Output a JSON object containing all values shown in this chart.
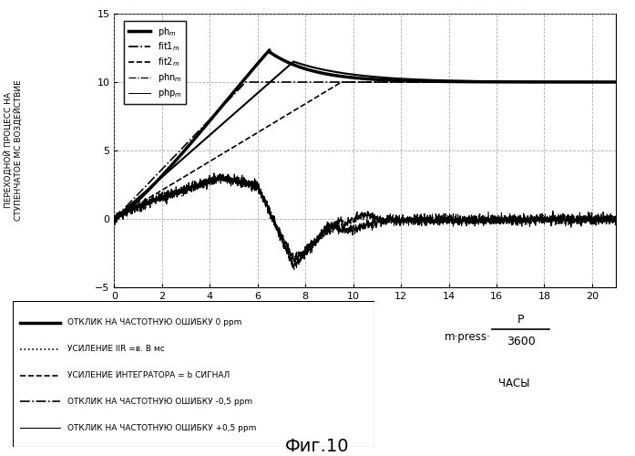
{
  "title_fig": "Фиг.10",
  "ylabel": "ПЕРЕХОДНОЙ ПРОЦЕСС НА\nСТУПЕНЧАТОЕ МС ВОЗДЕЙСТВИЕ",
  "xlim": [
    0,
    21
  ],
  "ylim": [
    -5,
    15
  ],
  "xticks": [
    0,
    2,
    4,
    6,
    8,
    10,
    12,
    14,
    16,
    18,
    20
  ],
  "yticks": [
    -5,
    0,
    5,
    10,
    15
  ],
  "legend1_labels": [
    "phₘ",
    "fit1ₘ",
    "fit2ₘ",
    "phnₘ",
    "phpₘ"
  ],
  "legend1_linestyles": [
    "-",
    "-.",
    "--",
    "-.",
    "-"
  ],
  "legend1_linewidths": [
    2.5,
    1.2,
    1.2,
    1.2,
    1.0
  ],
  "legend2_labels": [
    "ОТКЛИК НА ЧАСТОТНУЮ ОШИБКУ 0 ppm",
    "УСИЛЕНИЕ IIR =в. В мс",
    "УСИЛЕНИЕ ИНТЕГРАТОРА = b СИГНАЛ",
    "ОТКЛИК НА ЧАСТОТНУЮ ОШИБКУ -0,5 ppm",
    "ОТКЛИК НА ЧАСТОТНУЮ ОШИБКУ +0,5 ppm"
  ],
  "legend2_linestyles": [
    "-",
    ":",
    "--",
    "-.",
    "-"
  ],
  "legend2_linewidths": [
    2.5,
    1.2,
    1.2,
    1.2,
    0.8
  ],
  "background_color": "#ffffff",
  "grid_color": "#999999"
}
